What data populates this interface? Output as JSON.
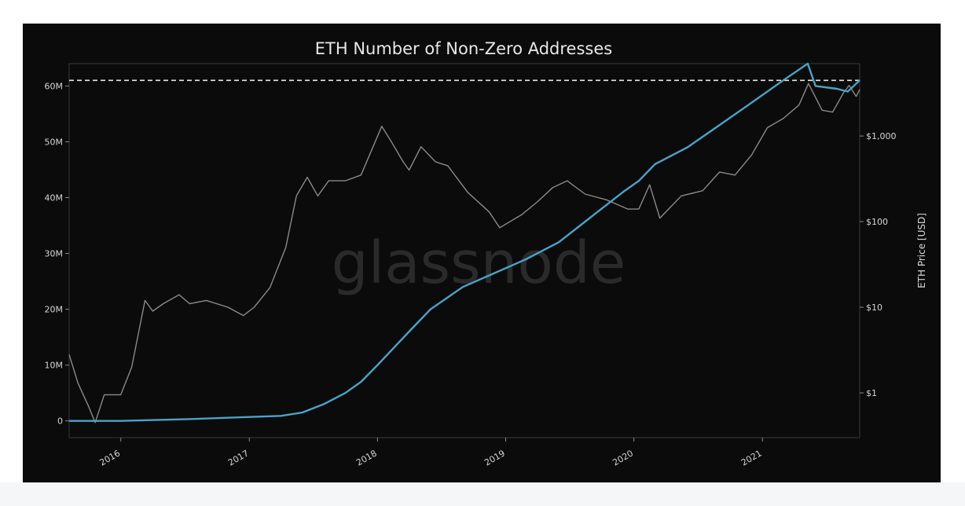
{
  "chart_data": {
    "type": "line",
    "title": "ETH Number of Non-Zero Addresses",
    "watermark": "glassnode",
    "x_ticks": [
      "2016",
      "2017",
      "2018",
      "2019",
      "2020",
      "2021"
    ],
    "x_range": [
      "2015-08-07",
      "2021-10-05"
    ],
    "y_left": {
      "label": "",
      "ticks": [
        "0",
        "10M",
        "20M",
        "30M",
        "40M",
        "50M",
        "60M"
      ],
      "tick_values": [
        0,
        10000000,
        20000000,
        30000000,
        40000000,
        50000000,
        60000000
      ],
      "range": [
        -3000000,
        64000000
      ]
    },
    "y_right": {
      "label": "ETH Price [USD]",
      "scale": "log",
      "ticks": [
        "$1",
        "$10",
        "$100",
        "$1,000"
      ],
      "tick_values": [
        1,
        10,
        100,
        1000
      ],
      "range": [
        0.3,
        7000
      ]
    },
    "reference_line": {
      "axis": "left",
      "value": 61000000,
      "style": "dashed"
    },
    "series": [
      {
        "axis": "left",
        "color": "#4aa3c8",
        "x": [
          "2015-08-07",
          "2016-01-01",
          "2016-07-01",
          "2017-01-01",
          "2017-04-01",
          "2017-06-01",
          "2017-08-01",
          "2017-10-01",
          "2017-11-15",
          "2018-01-01",
          "2018-02-15",
          "2018-04-01",
          "2018-06-01",
          "2018-09-01",
          "2018-12-01",
          "2019-03-01",
          "2019-06-01",
          "2019-08-01",
          "2019-10-01",
          "2019-12-01",
          "2020-01-15",
          "2020-03-01",
          "2020-06-01",
          "2020-09-01",
          "2020-12-01",
          "2021-03-01",
          "2021-05-10",
          "2021-06-01",
          "2021-08-01",
          "2021-09-01",
          "2021-10-05"
        ],
        "y": [
          0,
          0,
          300000,
          700000,
          900000,
          1500000,
          3000000,
          5000000,
          7000000,
          10000000,
          13000000,
          16000000,
          20000000,
          24000000,
          26500000,
          29000000,
          32000000,
          35000000,
          38000000,
          41000000,
          43000000,
          46000000,
          49000000,
          53000000,
          57000000,
          61000000,
          64000000,
          60000000,
          59500000,
          59000000,
          61000000
        ]
      },
      {
        "axis": "right",
        "color": "#8a8a8a",
        "x": [
          "2015-08-07",
          "2015-09-01",
          "2015-10-01",
          "2015-10-20",
          "2015-11-15",
          "2016-01-01",
          "2016-02-01",
          "2016-03-10",
          "2016-04-01",
          "2016-05-01",
          "2016-06-15",
          "2016-07-15",
          "2016-09-01",
          "2016-11-01",
          "2016-12-15",
          "2017-01-15",
          "2017-03-01",
          "2017-04-15",
          "2017-05-15",
          "2017-06-15",
          "2017-07-15",
          "2017-08-15",
          "2017-10-01",
          "2017-11-15",
          "2018-01-13",
          "2018-02-10",
          "2018-03-15",
          "2018-04-01",
          "2018-05-05",
          "2018-06-15",
          "2018-07-20",
          "2018-09-15",
          "2018-11-15",
          "2018-12-15",
          "2019-02-15",
          "2019-04-01",
          "2019-05-15",
          "2019-06-25",
          "2019-08-15",
          "2019-10-15",
          "2019-12-15",
          "2020-01-15",
          "2020-02-15",
          "2020-03-15",
          "2020-05-15",
          "2020-07-15",
          "2020-09-01",
          "2020-10-15",
          "2020-12-01",
          "2021-01-15",
          "2021-03-01",
          "2021-04-15",
          "2021-05-12",
          "2021-06-20",
          "2021-07-20",
          "2021-08-20",
          "2021-09-05",
          "2021-09-25",
          "2021-10-05"
        ],
        "y": [
          2.8,
          1.3,
          0.7,
          0.45,
          0.95,
          0.95,
          2.0,
          12,
          9,
          11,
          14,
          11,
          12,
          10,
          8,
          10,
          17,
          50,
          200,
          330,
          200,
          300,
          300,
          350,
          1300,
          850,
          500,
          400,
          750,
          500,
          450,
          220,
          130,
          85,
          120,
          170,
          250,
          300,
          210,
          180,
          140,
          140,
          270,
          110,
          200,
          230,
          380,
          350,
          600,
          1250,
          1600,
          2300,
          4100,
          2000,
          1900,
          3200,
          3900,
          2900,
          3500
        ]
      }
    ]
  }
}
